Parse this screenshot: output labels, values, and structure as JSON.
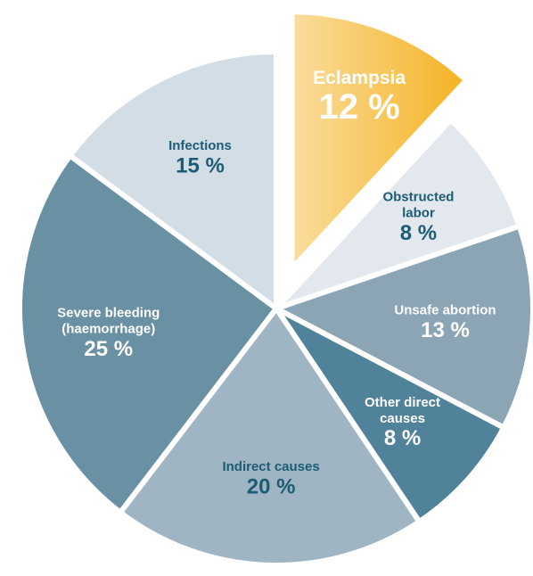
{
  "chart_data": {
    "type": "pie",
    "categories": [
      [
        "Eclampsia"
      ],
      [
        "Obstructed",
        "labor"
      ],
      [
        "Unsafe abortion"
      ],
      [
        "Other direct",
        "causes"
      ],
      [
        "Indirect causes"
      ],
      [
        "Severe bleeding",
        "(haemorrhage)"
      ],
      [
        "Infections"
      ]
    ],
    "values": [
      12,
      8,
      13,
      8,
      20,
      25,
      15
    ],
    "value_labels": [
      "12 %",
      "8 %",
      "13 %",
      "8 %",
      "20 %",
      "25 %",
      "15 %"
    ],
    "colors": [
      "#f5b324",
      "#e3e8ee",
      "#8ba5b5",
      "#50829a",
      "#a0b5c3",
      "#6a90a3",
      "#d3dde5"
    ],
    "label_colors": [
      "#ffffff",
      "#1c5c74",
      "#ffffff",
      "#ffffff",
      "#1c5c74",
      "#ffffff",
      "#1c5c74"
    ],
    "exploded": 0
  }
}
